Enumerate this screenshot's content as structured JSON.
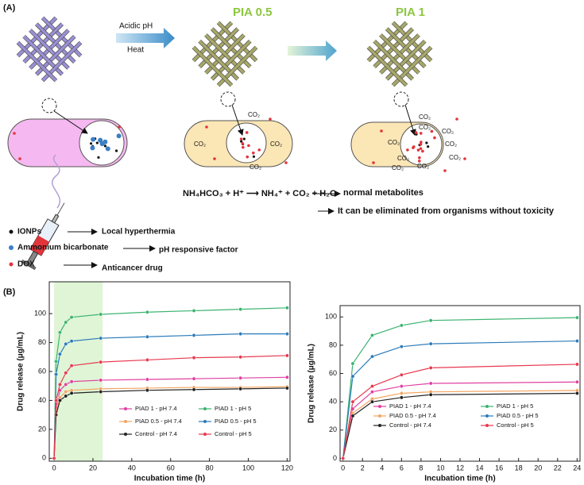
{
  "panel_a": {
    "label": "(A)",
    "titles": [
      "PIA 0.5",
      "PIA 1"
    ],
    "arrow_labels": [
      "Acidic pH",
      "Heat"
    ],
    "co2": "CO₂",
    "equation": "NH₄HCO₃ + H⁺ ⟶ NH₄⁺ + CO₂ + H₂O",
    "outcomes": [
      "normal metabolites",
      "It can be eliminated from organisms without toxicity"
    ],
    "legend": [
      {
        "name": "IONPs",
        "role": "Local hyperthermia"
      },
      {
        "name": "Ammonium bicarbonate",
        "role": "pH responsive factor"
      },
      {
        "name": "DOX",
        "role": "Anticancer drug"
      }
    ]
  },
  "panel_b_label": "(B)",
  "chart_data": [
    {
      "type": "line",
      "xlabel": "Incubation time (h)",
      "ylabel": "Drug release (μg/mL)",
      "x": [
        0,
        1,
        3,
        6,
        9,
        24,
        48,
        72,
        96,
        120
      ],
      "xlim": [
        -2.5,
        121.5
      ],
      "xticks": [
        0,
        20,
        40,
        60,
        80,
        100,
        120
      ],
      "ylim": [
        -2,
        122
      ],
      "yticks": [
        0,
        20,
        40,
        60,
        80,
        100
      ],
      "shade_x": [
        0,
        25
      ],
      "shade_color": "#dff5d6",
      "series": [
        {
          "name": "PIAD 1 - pH 7.4",
          "color": "#e040a0",
          "values": [
            0,
            35,
            47,
            51,
            53,
            54,
            54.5,
            55,
            55.5,
            56
          ]
        },
        {
          "name": "PIAD 1 - pH 5",
          "color": "#3cb371",
          "values": [
            0,
            67,
            87,
            94,
            97.5,
            99.5,
            101,
            102,
            103,
            104
          ]
        },
        {
          "name": "PIAD 0.5 - pH 7.4",
          "color": "#f4a460",
          "values": [
            0,
            32,
            42,
            46,
            47,
            48,
            48.5,
            49,
            49,
            49.5
          ]
        },
        {
          "name": "PIAD 0.5 - pH 5",
          "color": "#2b7bba",
          "values": [
            0,
            58,
            72,
            79,
            81,
            83,
            84,
            85,
            86,
            86
          ]
        },
        {
          "name": "Control - pH 7.4",
          "color": "#222222",
          "values": [
            0,
            30,
            40,
            43,
            45,
            46,
            47,
            47.5,
            48,
            48.5
          ]
        },
        {
          "name": "Control - pH 5",
          "color": "#e8384f",
          "values": [
            0,
            40,
            51,
            59,
            64,
            66.5,
            68,
            69.5,
            70,
            71
          ]
        }
      ]
    },
    {
      "type": "line",
      "xlabel": "Incubation time (h)",
      "ylabel": "Drug release (μg/mL)",
      "x": [
        0,
        1,
        3,
        6,
        9,
        24
      ],
      "xlim": [
        -0.3,
        24.3
      ],
      "xticks": [
        0,
        2,
        4,
        6,
        8,
        10,
        12,
        14,
        16,
        18,
        20,
        22,
        24
      ],
      "ylim": [
        -2,
        108
      ],
      "yticks": [
        0,
        20,
        40,
        60,
        80,
        100
      ],
      "series": [
        {
          "name": "PIAD 1 - pH 7.4",
          "color": "#e040a0",
          "values": [
            0,
            35,
            47,
            51,
            53,
            54
          ]
        },
        {
          "name": "PIAD 1 - pH 5",
          "color": "#3cb371",
          "values": [
            0,
            67,
            87,
            94,
            97.5,
            99.5
          ]
        },
        {
          "name": "PIAD 0.5 - pH 7.4",
          "color": "#f4a460",
          "values": [
            0,
            32,
            42,
            46,
            47,
            48
          ]
        },
        {
          "name": "PIAD 0.5 - pH 5",
          "color": "#2b7bba",
          "values": [
            0,
            58,
            72,
            79,
            81,
            83
          ]
        },
        {
          "name": "Control - pH 7.4",
          "color": "#222222",
          "values": [
            0,
            30,
            40,
            43,
            45,
            46
          ]
        },
        {
          "name": "Control - pH 5",
          "color": "#e8384f",
          "values": [
            0,
            40,
            51,
            59,
            64,
            66.5
          ]
        }
      ]
    }
  ]
}
